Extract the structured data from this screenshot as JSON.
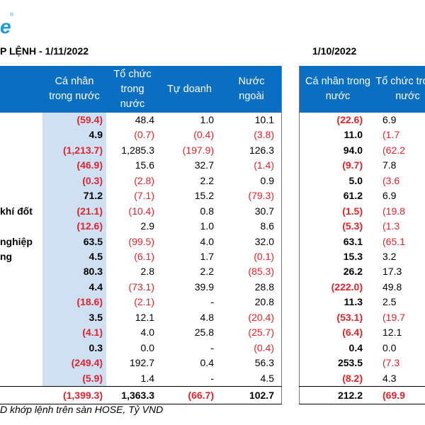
{
  "brand": {
    "logo_text": "e",
    "reg_mark": "®"
  },
  "left_title": "P LỆNH - 1/11/2022",
  "right_title": "1/10/2022",
  "left_headers": [
    "Cá nhân trong nước",
    "Tổ chức trong nước",
    "Tự doanh",
    "Nước ngoài"
  ],
  "right_headers": [
    "Cá nhân trong nước",
    "Tổ chức trong nước"
  ],
  "rows": [
    {
      "label": "",
      "ca_nhan": "(59.4)",
      "to_chuc": "48.4",
      "tu_doanh": "1.0",
      "nuoc_ngoai": "10.1",
      "r_ca_nhan": "(22.6)",
      "r_to_chuc": "6.9"
    },
    {
      "label": "",
      "ca_nhan": "4.9",
      "to_chuc": "(0.7)",
      "tu_doanh": "(0.4)",
      "nuoc_ngoai": "(3.8)",
      "r_ca_nhan": "11.0",
      "r_to_chuc": "(1.7"
    },
    {
      "label": "",
      "ca_nhan": "(1,213.7)",
      "to_chuc": "1,285.3",
      "tu_doanh": "(197.9)",
      "nuoc_ngoai": "126.3",
      "r_ca_nhan": "94.0",
      "r_to_chuc": "(62.2"
    },
    {
      "label": "",
      "ca_nhan": "(46.9)",
      "to_chuc": "15.6",
      "tu_doanh": "32.7",
      "nuoc_ngoai": "(1.4)",
      "r_ca_nhan": "(9.7)",
      "r_to_chuc": "7.8"
    },
    {
      "label": "",
      "ca_nhan": "(0.3)",
      "to_chuc": "(2.8)",
      "tu_doanh": "2.2",
      "nuoc_ngoai": "0.9",
      "r_ca_nhan": "5.0",
      "r_to_chuc": "(3.6"
    },
    {
      "label": "",
      "ca_nhan": "71.2",
      "to_chuc": "(7.1)",
      "tu_doanh": "15.2",
      "nuoc_ngoai": "(79.3)",
      "r_ca_nhan": "61.2",
      "r_to_chuc": "6.9"
    },
    {
      "label": "khí đốt",
      "ca_nhan": "(21.1)",
      "to_chuc": "(10.4)",
      "tu_doanh": "0.8",
      "nuoc_ngoai": "30.7",
      "r_ca_nhan": "(1.5)",
      "r_to_chuc": "(19.8"
    },
    {
      "label": "",
      "ca_nhan": "(12.6)",
      "to_chuc": "2.9",
      "tu_doanh": "1.0",
      "nuoc_ngoai": "8.6",
      "r_ca_nhan": "(5.3)",
      "r_to_chuc": "(1.3"
    },
    {
      "label": "nghiệp",
      "ca_nhan": "63.5",
      "to_chuc": "(99.5)",
      "tu_doanh": "4.0",
      "nuoc_ngoai": "32.0",
      "r_ca_nhan": "63.1",
      "r_to_chuc": "(65.1"
    },
    {
      "label": "ng",
      "ca_nhan": "4.5",
      "to_chuc": "(6.1)",
      "tu_doanh": "1.7",
      "nuoc_ngoai": "(0.1)",
      "r_ca_nhan": "15.3",
      "r_to_chuc": "3.2"
    },
    {
      "label": "",
      "ca_nhan": "80.3",
      "to_chuc": "2.8",
      "tu_doanh": "2.2",
      "nuoc_ngoai": "(85.3)",
      "r_ca_nhan": "26.2",
      "r_to_chuc": "17.3"
    },
    {
      "label": "",
      "ca_nhan": "4.4",
      "to_chuc": "(73.1)",
      "tu_doanh": "39.9",
      "nuoc_ngoai": "28.8",
      "r_ca_nhan": "(222.0)",
      "r_to_chuc": "49.8"
    },
    {
      "label": "",
      "ca_nhan": "(18.6)",
      "to_chuc": "(2.1)",
      "tu_doanh": "-",
      "nuoc_ngoai": "20.8",
      "r_ca_nhan": "11.3",
      "r_to_chuc": "2.5"
    },
    {
      "label": "",
      "ca_nhan": "3.5",
      "to_chuc": "12.1",
      "tu_doanh": "4.8",
      "nuoc_ngoai": "(20.4)",
      "r_ca_nhan": "(53.1)",
      "r_to_chuc": "(19.7"
    },
    {
      "label": "",
      "ca_nhan": "(4.1)",
      "to_chuc": "4.0",
      "tu_doanh": "25.8",
      "nuoc_ngoai": "(25.7)",
      "r_ca_nhan": "(6.4)",
      "r_to_chuc": "12.1"
    },
    {
      "label": "",
      "ca_nhan": "0.3",
      "to_chuc": "0.0",
      "tu_doanh": "-",
      "nuoc_ngoai": "(0.4)",
      "r_ca_nhan": "0.4",
      "r_to_chuc": "0.0"
    },
    {
      "label": "",
      "ca_nhan": "(249.4)",
      "to_chuc": "192.7",
      "tu_doanh": "0.4",
      "nuoc_ngoai": "56.3",
      "r_ca_nhan": "253.5",
      "r_to_chuc": "(7.3"
    },
    {
      "label": "",
      "ca_nhan": "(5.9)",
      "to_chuc": "1.4",
      "tu_doanh": "-",
      "nuoc_ngoai": "4.5",
      "r_ca_nhan": "(8.2)",
      "r_to_chuc": "4.3"
    }
  ],
  "total": {
    "ca_nhan": "(1,399.3)",
    "to_chuc": "1,363.3",
    "tu_doanh": "(66.7)",
    "nuoc_ngoai": "102.7",
    "r_ca_nhan": "212.2",
    "r_to_chuc": "(69.9"
  },
  "footer": "D khớp lệnh trên sàn HOSE, Tỷ VND",
  "colors": {
    "header_bg": "#0b6fc1",
    "highlight_col": "#cfe0f3",
    "negative": "#e0242a",
    "logo": "#1a9be0"
  }
}
